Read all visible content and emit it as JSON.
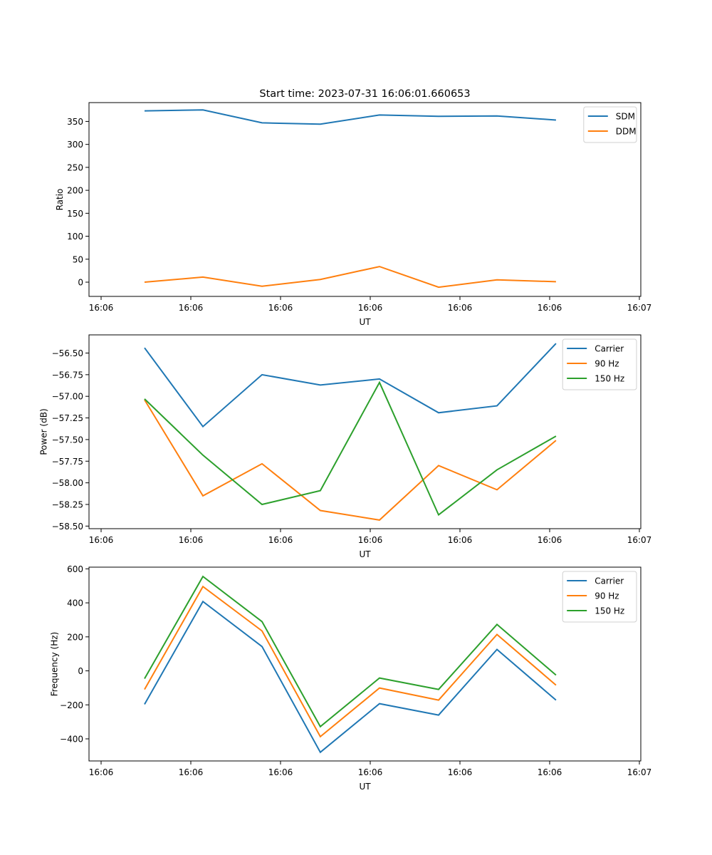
{
  "chart_data": [
    {
      "type": "line",
      "title": "Start time: 2023-07-31 16:06:01.660653",
      "xlabel": "UT",
      "ylabel": "Ratio",
      "x_tick_labels": [
        "16:06",
        "16:06",
        "16:06",
        "16:06",
        "16:06",
        "16:06",
        "16:07"
      ],
      "x_tick_range": [
        0,
        6
      ],
      "x": [
        0.484,
        1.135,
        1.794,
        2.444,
        3.103,
        3.762,
        4.413,
        5.071
      ],
      "ylim": [
        -31,
        391
      ],
      "y_ticks": [
        0,
        50,
        100,
        150,
        200,
        250,
        300,
        350
      ],
      "y_tick_labels": [
        "0",
        "50",
        "100",
        "150",
        "200",
        "250",
        "300",
        "350"
      ],
      "legend_position": "top-right",
      "grid": false,
      "series": [
        {
          "name": "SDM",
          "color": "#1f77b4",
          "values": [
            373,
            375,
            347,
            344,
            364,
            361,
            362,
            353
          ]
        },
        {
          "name": "DDM",
          "color": "#ff7f0e",
          "values": [
            0,
            11,
            -9,
            6,
            34,
            -11,
            5,
            1
          ]
        }
      ]
    },
    {
      "type": "line",
      "title": "",
      "xlabel": "UT",
      "ylabel": "Power (dB)",
      "x_tick_labels": [
        "16:06",
        "16:06",
        "16:06",
        "16:06",
        "16:06",
        "16:06",
        "16:07"
      ],
      "x_tick_range": [
        0,
        6
      ],
      "x": [
        0.484,
        1.135,
        1.794,
        2.444,
        3.103,
        3.762,
        4.413,
        5.071
      ],
      "ylim": [
        -58.53,
        -56.29
      ],
      "y_ticks": [
        -58.5,
        -58.25,
        -58.0,
        -57.75,
        -57.5,
        -57.25,
        -57.0,
        -56.75,
        -56.5
      ],
      "y_tick_labels": [
        "−58.50",
        "−58.25",
        "−58.00",
        "−57.75",
        "−57.50",
        "−57.25",
        "−57.00",
        "−56.75",
        "−56.50"
      ],
      "legend_position": "top-right",
      "grid": false,
      "series": [
        {
          "name": "Carrier",
          "color": "#1f77b4",
          "values": [
            -56.44,
            -57.35,
            -56.75,
            -56.87,
            -56.8,
            -57.19,
            -57.11,
            -56.39
          ]
        },
        {
          "name": "90 Hz",
          "color": "#ff7f0e",
          "values": [
            -57.04,
            -58.15,
            -57.78,
            -58.32,
            -58.43,
            -57.8,
            -58.08,
            -57.51
          ]
        },
        {
          "name": "150 Hz",
          "color": "#2ca02c",
          "values": [
            -57.03,
            -57.68,
            -58.25,
            -58.09,
            -56.84,
            -58.37,
            -57.85,
            -57.46
          ]
        }
      ]
    },
    {
      "type": "line",
      "title": "",
      "xlabel": "UT",
      "ylabel": "Frequency (Hz)",
      "x_tick_labels": [
        "16:06",
        "16:06",
        "16:06",
        "16:06",
        "16:06",
        "16:06",
        "16:07"
      ],
      "x_tick_range": [
        0,
        6
      ],
      "x": [
        0.484,
        1.135,
        1.794,
        2.444,
        3.103,
        3.762,
        4.413,
        5.071
      ],
      "ylim": [
        -530,
        610
      ],
      "y_ticks": [
        -400,
        -200,
        0,
        200,
        400,
        600
      ],
      "y_tick_labels": [
        "−400",
        "−200",
        "0",
        "200",
        "400",
        "600"
      ],
      "legend_position": "top-right",
      "grid": false,
      "series": [
        {
          "name": "Carrier",
          "color": "#1f77b4",
          "values": [
            -197,
            408,
            143,
            -479,
            -193,
            -260,
            126,
            -172
          ]
        },
        {
          "name": "90 Hz",
          "color": "#ff7f0e",
          "values": [
            -109,
            496,
            235,
            -387,
            -101,
            -172,
            214,
            -84
          ]
        },
        {
          "name": "150 Hz",
          "color": "#2ca02c",
          "values": [
            -46,
            555,
            290,
            -328,
            -42,
            -109,
            273,
            -25
          ]
        }
      ]
    }
  ]
}
